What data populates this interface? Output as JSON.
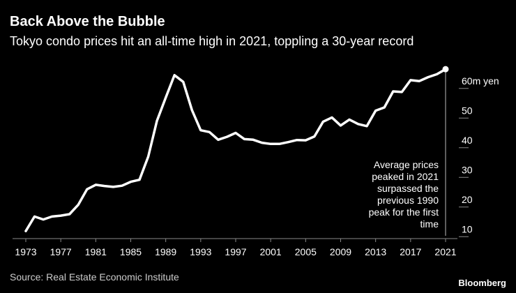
{
  "header": {
    "title": "Back Above the Bubble",
    "subtitle": "Tokyo condo prices hit an all-time high in 2021, toppling a 30-year record"
  },
  "footer": {
    "source": "Source: Real Estate Economic Institute",
    "logo": "Bloomberg"
  },
  "colors": {
    "background": "#000000",
    "line": "#ffffff",
    "text": "#ffffff",
    "muted": "#cccccc"
  },
  "chart_data": {
    "type": "line",
    "title": "Back Above the Bubble",
    "subtitle": "Tokyo condo prices hit an all-time high in 2021, toppling a 30-year record",
    "xlabel": "",
    "ylabel": "",
    "unit_label": "60m yen",
    "xlim": [
      1973,
      2021
    ],
    "ylim": [
      7,
      63
    ],
    "x_ticks": [
      "1973",
      "1977",
      "1981",
      "1985",
      "1989",
      "1993",
      "1997",
      "2001",
      "2005",
      "2009",
      "2013",
      "2017",
      "2021"
    ],
    "y_ticks": [
      {
        "value": 60,
        "label": "60m yen"
      },
      {
        "value": 50,
        "label": "50"
      },
      {
        "value": 40,
        "label": "40"
      },
      {
        "value": 30,
        "label": "30"
      },
      {
        "value": 20,
        "label": "20"
      },
      {
        "value": 10,
        "label": "10"
      }
    ],
    "grid": false,
    "series": [
      {
        "x": [
          1973,
          1974,
          1975,
          1976,
          1977,
          1978,
          1979,
          1980,
          1981,
          1982,
          1983,
          1984,
          1985,
          1986,
          1987,
          1988,
          1989,
          1990,
          1991,
          1992,
          1993,
          1994,
          1995,
          1996,
          1997,
          1998,
          1999,
          2000,
          2001,
          2002,
          2003,
          2004,
          2005,
          2006,
          2007,
          2008,
          2009,
          2010,
          2011,
          2012,
          2013,
          2014,
          2015,
          2016,
          2017,
          2018,
          2019,
          2020,
          2021
        ],
        "y": [
          8.6,
          13.5,
          12.5,
          13.5,
          13.8,
          14.3,
          17.5,
          22.7,
          24.2,
          23.8,
          23.5,
          23.9,
          25.2,
          25.9,
          33.7,
          45.8,
          53.6,
          61.2,
          58.9,
          49.4,
          42.6,
          42.0,
          39.4,
          40.4,
          41.7,
          39.6,
          39.4,
          38.4,
          38.0,
          38.0,
          38.6,
          39.3,
          39.2,
          40.5,
          45.5,
          46.9,
          44.2,
          46.2,
          44.7,
          44.0,
          49.2,
          50.3,
          55.7,
          55.5,
          59.5,
          59.2,
          60.5,
          61.5,
          63.2
        ]
      }
    ],
    "annotation": {
      "x": 2021,
      "text_lines": [
        "Average prices",
        "peaked in 2021",
        "surpassed the",
        "previous 1990",
        "peak for the first",
        "time"
      ]
    }
  }
}
